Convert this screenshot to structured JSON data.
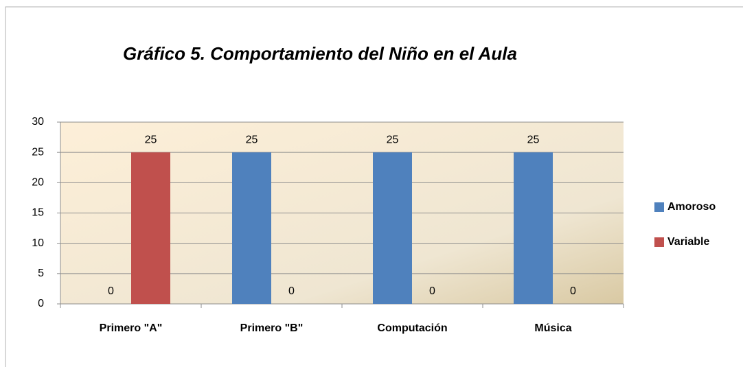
{
  "chart_data": {
    "type": "bar",
    "title": "Gráfico 5. Comportamiento del Niño en el Aula",
    "categories": [
      "Primero \"A\"",
      "Primero \"B\"",
      "Computación",
      "Música"
    ],
    "series": [
      {
        "name": "Amoroso",
        "color": "#4f81bd",
        "values": [
          0,
          25,
          25,
          25
        ]
      },
      {
        "name": "Variable",
        "color": "#c0504d",
        "values": [
          25,
          0,
          0,
          0
        ]
      }
    ],
    "ylim": [
      0,
      30
    ],
    "yticks": [
      0,
      5,
      10,
      15,
      20,
      25,
      30
    ],
    "grid": true,
    "legend": "right"
  }
}
